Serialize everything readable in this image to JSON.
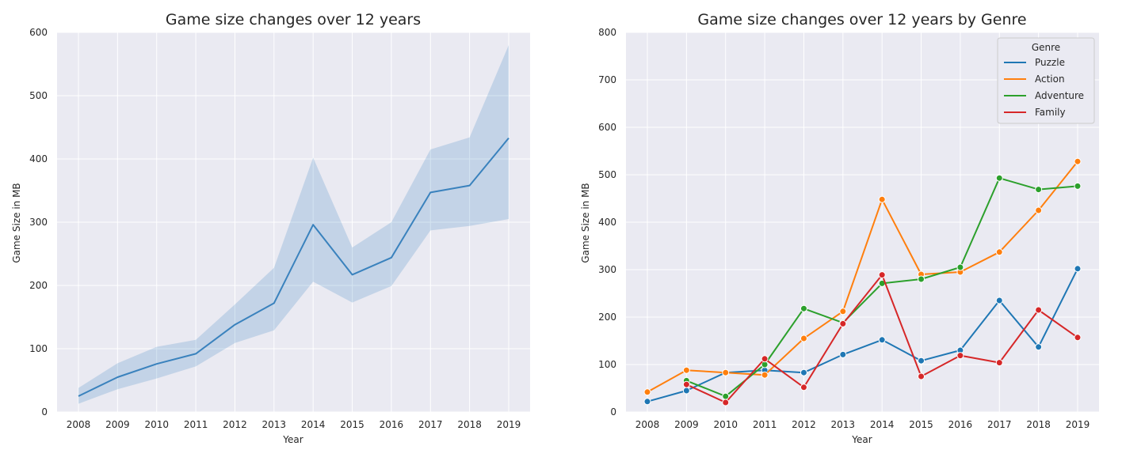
{
  "chart_data": [
    {
      "type": "line",
      "title": "Game size changes over 12 years",
      "xlabel": "Year",
      "ylabel": "Game Size in MB",
      "ylim": [
        0,
        600
      ],
      "yticks": [
        "0",
        "100",
        "200",
        "300",
        "400",
        "500",
        "600"
      ],
      "x": [
        "2008",
        "2009",
        "2010",
        "2011",
        "2012",
        "2013",
        "2014",
        "2015",
        "2016",
        "2017",
        "2018",
        "2019"
      ],
      "grid": true,
      "series": [
        {
          "values": [
            25,
            55,
            76,
            92,
            138,
            172,
            296,
            217,
            244,
            347,
            358,
            433
          ],
          "ci_upper": [
            38,
            77,
            103,
            114,
            170,
            228,
            402,
            260,
            300,
            415,
            434,
            580
          ],
          "ci_lower": [
            13,
            36,
            53,
            72,
            109,
            129,
            206,
            173,
            199,
            287,
            294,
            305
          ],
          "color": "#3a82bd"
        }
      ]
    },
    {
      "type": "line",
      "title": "Game size changes over 12 years by Genre",
      "xlabel": "Year",
      "ylabel": "Game Size in MB",
      "ylim": [
        0,
        800
      ],
      "yticks": [
        "0",
        "100",
        "200",
        "300",
        "400",
        "500",
        "600",
        "700",
        "800"
      ],
      "x": [
        "2008",
        "2009",
        "2010",
        "2011",
        "2012",
        "2013",
        "2014",
        "2015",
        "2016",
        "2017",
        "2018",
        "2019"
      ],
      "grid": true,
      "legend": {
        "title": "Genre",
        "placement": "top-right"
      },
      "series": [
        {
          "name": "Puzzle",
          "color": "#1f77b4",
          "values": [
            22,
            45,
            83,
            88,
            83,
            121,
            152,
            108,
            130,
            235,
            137,
            302
          ]
        },
        {
          "name": "Action",
          "color": "#ff7f0e",
          "values": [
            42,
            88,
            83,
            78,
            155,
            212,
            448,
            290,
            295,
            337,
            425,
            528
          ]
        },
        {
          "name": "Adventure",
          "color": "#2ca02c",
          "values": [
            null,
            66,
            33,
            100,
            218,
            188,
            271,
            280,
            305,
            493,
            469,
            476
          ]
        },
        {
          "name": "Family",
          "color": "#d62728",
          "values": [
            null,
            58,
            20,
            112,
            52,
            186,
            289,
            75,
            119,
            104,
            215,
            157
          ]
        }
      ]
    }
  ]
}
